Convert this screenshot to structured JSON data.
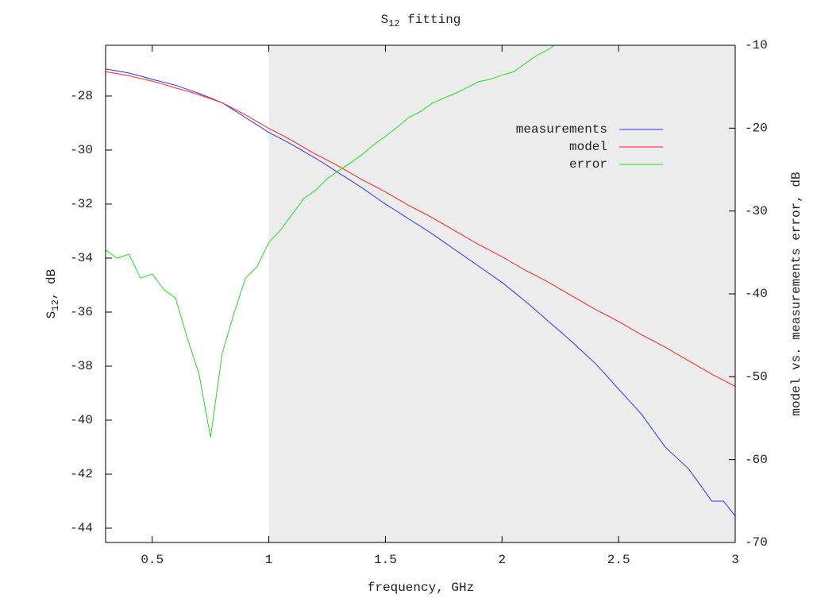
{
  "chart_data": {
    "type": "line",
    "title": {
      "base": "S",
      "subscript": "12",
      "rest": " fitting"
    },
    "x_label": "frequency, GHz",
    "y_label": {
      "base": "S",
      "subscript": "12",
      "rest": ", dB"
    },
    "y2_label": "model vs. measurements error, dB",
    "x": [
      0.3,
      0.35,
      0.4,
      0.45,
      0.5,
      0.55,
      0.6,
      0.65,
      0.7,
      0.75,
      0.8,
      0.85,
      0.9,
      0.95,
      1.0,
      1.05,
      1.1,
      1.15,
      1.2,
      1.25,
      1.3,
      1.35,
      1.4,
      1.45,
      1.5,
      1.55,
      1.6,
      1.65,
      1.7,
      1.75,
      1.8,
      1.85,
      1.9,
      1.95,
      2.0,
      2.05,
      2.1,
      2.15,
      2.2,
      2.25,
      2.3,
      2.35,
      2.4,
      2.45,
      2.5,
      2.55,
      2.6,
      2.65,
      2.7,
      2.75,
      2.8,
      2.85,
      2.9,
      2.95,
      3.0
    ],
    "series": [
      {
        "name": "measurements",
        "color": "#3030ff",
        "values": [
          -27.0,
          -27.07,
          -27.15,
          -27.26,
          -27.38,
          -27.49,
          -27.6,
          -27.75,
          -27.9,
          -28.07,
          -28.25,
          -28.52,
          -28.8,
          -29.07,
          -29.35,
          -29.57,
          -29.8,
          -30.05,
          -30.3,
          -30.57,
          -30.85,
          -31.12,
          -31.4,
          -31.7,
          -32.0,
          -32.27,
          -32.55,
          -32.82,
          -33.1,
          -33.4,
          -33.7,
          -34.0,
          -34.3,
          -34.6,
          -34.9,
          -35.25,
          -35.6,
          -35.97,
          -36.35,
          -36.72,
          -37.1,
          -37.5,
          -37.9,
          -38.37,
          -38.85,
          -39.32,
          -39.8,
          -40.4,
          -41.0,
          -41.4,
          -41.8,
          -42.4,
          -43.0,
          -43.0,
          -43.55
        ]
      },
      {
        "name": "model",
        "color": "#ff2020",
        "values": [
          -27.1,
          -27.17,
          -27.25,
          -27.35,
          -27.45,
          -27.57,
          -27.7,
          -27.82,
          -27.95,
          -28.1,
          -28.25,
          -28.47,
          -28.7,
          -28.95,
          -29.2,
          -29.42,
          -29.65,
          -29.9,
          -30.15,
          -30.37,
          -30.6,
          -30.85,
          -31.1,
          -31.32,
          -31.55,
          -31.8,
          -32.05,
          -32.27,
          -32.5,
          -32.75,
          -33.0,
          -33.25,
          -33.5,
          -33.72,
          -33.95,
          -34.2,
          -34.45,
          -34.67,
          -34.9,
          -35.15,
          -35.4,
          -35.65,
          -35.9,
          -36.12,
          -36.35,
          -36.6,
          -36.85,
          -37.07,
          -37.3,
          -37.55,
          -37.8,
          -38.05,
          -38.3,
          -38.52,
          -38.75
        ]
      },
      {
        "name": "error",
        "color": "#20e020",
        "axis": "y2",
        "values": [
          -34.7,
          -35.7,
          -35.2,
          -38.1,
          -37.6,
          -39.5,
          -40.5,
          -45.3,
          -49.6,
          -57.3,
          -47.2,
          -42.4,
          -38.1,
          -36.7,
          -33.8,
          -32.3,
          -30.4,
          -28.5,
          -27.5,
          -26.1,
          -25.1,
          -24.2,
          -23.2,
          -22.0,
          -21.0,
          -19.9,
          -18.7,
          -18.0,
          -17.0,
          -16.4,
          -15.8,
          -15.1,
          -14.4,
          -14.1,
          -13.6,
          -13.2,
          -12.2,
          -11.2,
          -10.5,
          -9.5,
          null,
          null,
          null,
          null,
          null,
          null,
          null,
          null,
          null,
          null,
          null,
          null,
          null,
          null,
          null
        ]
      }
    ],
    "xlim": [
      0.3,
      3
    ],
    "xticks": [
      0.5,
      1,
      1.5,
      2,
      2.5,
      3
    ],
    "ylim": [
      -44.53,
      -26.12
    ],
    "yticks": [
      -44,
      -42,
      -40,
      -38,
      -36,
      -34,
      -32,
      -30,
      -28
    ],
    "y2lim": [
      -70,
      -10
    ],
    "y2ticks": [
      -70,
      -60,
      -50,
      -40,
      -30,
      -20,
      -10
    ],
    "y2_color": "#20e020",
    "shaded_xrange": [
      1,
      3
    ],
    "shade_color": "#ececec",
    "legend": "upper right"
  }
}
